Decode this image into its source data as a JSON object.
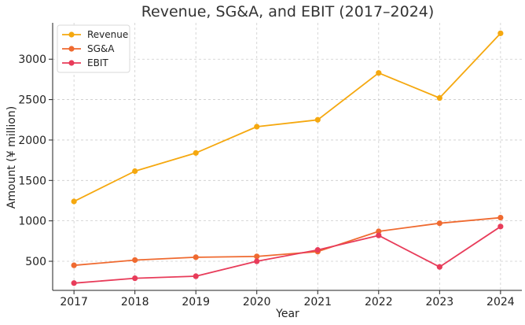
{
  "chart_data": {
    "type": "line",
    "title": "Revenue, SG&A, and EBIT (2017–2024)",
    "xlabel": "Year",
    "ylabel": "Amount (¥ million)",
    "x": [
      2017,
      2018,
      2019,
      2020,
      2021,
      2022,
      2023,
      2024
    ],
    "x_tick_labels": [
      "2017",
      "2018",
      "2019",
      "2020",
      "2021",
      "2022",
      "2023",
      "2024"
    ],
    "ylim": [
      140,
      3450
    ],
    "y_ticks": [
      500,
      1000,
      1500,
      2000,
      2500,
      3000
    ],
    "y_tick_labels": [
      "500",
      "1000",
      "1500",
      "2000",
      "2500",
      "3000"
    ],
    "grid": true,
    "legend_position": "top-left",
    "series": [
      {
        "name": "Revenue",
        "color": "#f5a80f",
        "values": [
          1240,
          1615,
          1840,
          2165,
          2250,
          2830,
          2520,
          3320
        ]
      },
      {
        "name": "SG&A",
        "color": "#ef6a30",
        "values": [
          450,
          515,
          550,
          560,
          620,
          870,
          970,
          1040
        ]
      },
      {
        "name": "EBIT",
        "color": "#e83c5a",
        "values": [
          230,
          290,
          315,
          500,
          640,
          820,
          430,
          930
        ]
      }
    ]
  }
}
